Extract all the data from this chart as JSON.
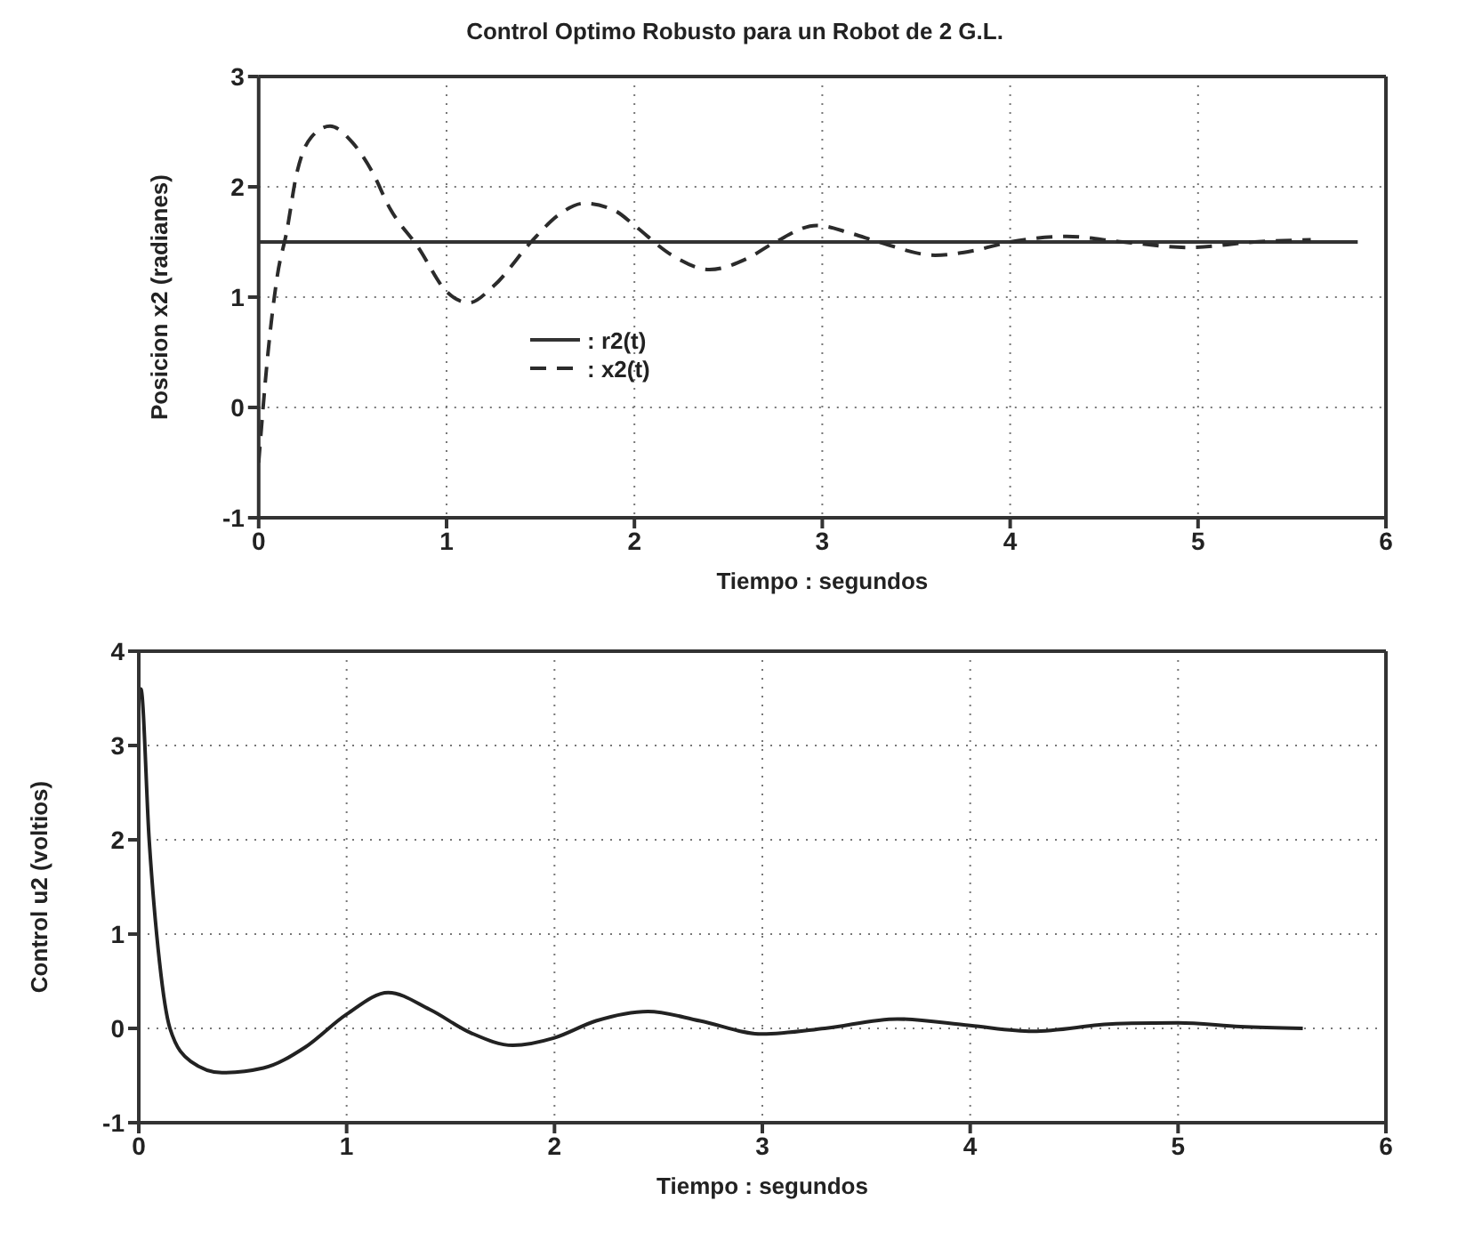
{
  "chart_data": [
    {
      "type": "line",
      "title": "Control Optimo Robusto para un Robot de 2 G.L.",
      "xlabel": "Tiempo : segundos",
      "ylabel": "Posicion x2 (radianes)",
      "xlim": [
        0,
        6
      ],
      "xticks": [
        0,
        1,
        2,
        3,
        4,
        5,
        6
      ],
      "ylim": [
        -1,
        3
      ],
      "yticks": [
        -1,
        0,
        1,
        2,
        3
      ],
      "grid": true,
      "legend": "center",
      "marker": "none",
      "series": [
        {
          "name": ": r2(t)",
          "color": "#333333",
          "line_style": "solid",
          "x": [
            0,
            5.85
          ],
          "values": [
            1.5,
            1.5
          ]
        },
        {
          "name": ": x2(t)",
          "color": "#2b2b2b",
          "line_style": "dashed",
          "x": [
            0,
            0.05,
            0.1,
            0.15,
            0.2,
            0.28,
            0.38,
            0.5,
            0.6,
            0.7,
            0.85,
            1.0,
            1.12,
            1.25,
            1.45,
            1.6,
            1.73,
            1.9,
            2.0,
            2.2,
            2.4,
            2.6,
            2.75,
            2.97,
            3.15,
            3.3,
            3.6,
            3.8,
            4.0,
            4.3,
            4.6,
            4.95,
            5.3,
            5.6
          ],
          "values": [
            -0.5,
            0.5,
            1.2,
            1.6,
            2.1,
            2.45,
            2.55,
            2.4,
            2.15,
            1.8,
            1.45,
            1.05,
            0.95,
            1.1,
            1.5,
            1.75,
            1.85,
            1.78,
            1.65,
            1.38,
            1.25,
            1.35,
            1.5,
            1.65,
            1.58,
            1.5,
            1.38,
            1.42,
            1.5,
            1.55,
            1.5,
            1.45,
            1.5,
            1.52
          ]
        }
      ]
    },
    {
      "type": "line",
      "xlabel": "Tiempo : segundos",
      "ylabel": "Control u2  (voltios)",
      "xlim": [
        0,
        6
      ],
      "xticks": [
        0,
        1,
        2,
        3,
        4,
        5,
        6
      ],
      "ylim": [
        -1,
        4
      ],
      "yticks": [
        -1,
        0,
        1,
        2,
        3,
        4
      ],
      "grid": true,
      "marker": "none",
      "line_style": "solid",
      "series": [
        {
          "color": "#222222",
          "x": [
            0,
            0.01,
            0.05,
            0.1,
            0.15,
            0.25,
            0.4,
            0.6,
            0.8,
            1.0,
            1.2,
            1.4,
            1.6,
            1.8,
            2.0,
            2.2,
            2.45,
            2.7,
            3.0,
            3.3,
            3.65,
            4.0,
            4.3,
            4.7,
            5.0,
            5.3,
            5.6
          ],
          "values": [
            3.6,
            3.6,
            2.0,
            0.7,
            0.0,
            -0.35,
            -0.47,
            -0.42,
            -0.2,
            0.15,
            0.38,
            0.2,
            -0.05,
            -0.18,
            -0.1,
            0.08,
            0.18,
            0.08,
            -0.06,
            0.0,
            0.1,
            0.03,
            -0.03,
            0.05,
            0.06,
            0.02,
            0.0
          ]
        }
      ]
    }
  ]
}
